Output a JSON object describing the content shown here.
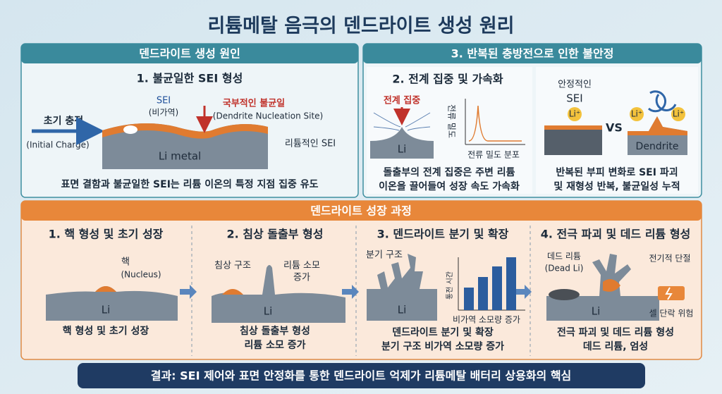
{
  "header": {
    "title": "리튬메탈 음극의 덴드라이트 생성 원리"
  },
  "causes": {
    "header": "덴드라이트 생성 원인",
    "sei": {
      "title": "1. 불균일한 SEI 형성",
      "sei_label": "SEI",
      "sei_note": "(비가역)",
      "local_label": "국부적인 불균일",
      "local_note": "(Dendrite Nucleation Site)",
      "charge_label": "초기 충전",
      "charge_note": "(Initial Charge)",
      "metal_label": "Li metal",
      "right_label": "리튬적인 SEI",
      "caption": "표면 결함과 불균일한 SEI는 리튬 이온의 특정 지점 집중 유도"
    }
  },
  "instability": {
    "header": "3. 반복된 충방전으로 인한 불안정",
    "field": {
      "title": "2. 전계 집중 및 가속화",
      "focus_label": "전계 집중",
      "li_label": "Li",
      "y_label": "전류 밀도",
      "x_label": "전류 밀도 분포",
      "caption": [
        "돌출부의 전계 집중은 주변 리튬",
        "이온을 끌어들여 성장 속도 가속화"
      ]
    },
    "cycle": {
      "stable_label": [
        "안정적인",
        "SEI"
      ],
      "ion_labels": [
        "Li⁺",
        "Li⁺",
        "Li⁺"
      ],
      "vs_label": "VS",
      "dendrite_label": "Dendrite",
      "caption": [
        "반복된 부피 변화로 SEI 파괴",
        "및 재형성 반복, 불균일성 누적"
      ]
    }
  },
  "growth": {
    "header": "덴드라이트 성장 과정",
    "stages": [
      {
        "title": "1. 핵 형성 및 초기 성장",
        "labels": [
          "핵",
          "(Nucleus)",
          "Li"
        ],
        "caption": [
          "핵 형성 및 초기 성장"
        ]
      },
      {
        "title": "2. 침상 돌출부 형성",
        "labels": [
          "침상 구조",
          "리튬 소모",
          "증가",
          "Li"
        ],
        "caption": [
          "침상 돌출부 형성",
          "리튬 소모 증가"
        ]
      },
      {
        "title": "3. 덴드라이트 분기 및 확장",
        "labels": [
          "분기 구조",
          "통전 시간",
          "비가역 소모량 증가",
          "Li"
        ],
        "caption": [
          "덴드라이트 분기 및 확장",
          "분기 구조 비가역 소모량 증가"
        ]
      },
      {
        "title": "4. 전극 파괴 및 데드 리튬 형성",
        "labels": [
          "데드 리튬",
          "(Dead Li)",
          "전기적 단절",
          "셀 단락 위험",
          "Li"
        ],
        "caption": [
          "전극 파괴 및 데드 리튬 형성",
          "데드 리튬, 엄성"
        ]
      }
    ]
  },
  "footer": {
    "text": "결과: SEI 제어와 표면 안정화를 통한 덴드라이트 억제가 리튬메탈 배터리 상용화의 핵심"
  }
}
